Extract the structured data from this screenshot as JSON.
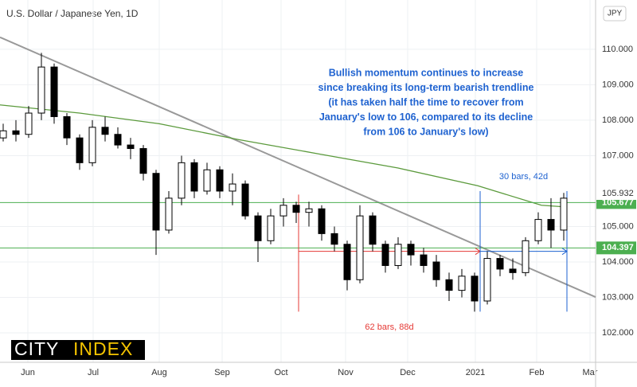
{
  "chart_data": {
    "type": "candlestick",
    "title": "U.S. Dollar / Japanese Yen, 1D",
    "currency": "JPY",
    "logo": [
      "CITY",
      "INDEX"
    ],
    "annotation": [
      "Bullish momentum continues to increase",
      "since breaking its long-term bearish trendline",
      "(it has taken half the time to recover from",
      "January's low to 106, compared to its decline",
      "from 106 to January's low)"
    ],
    "up_color": "#ffffff",
    "down_color": "#000000",
    "xlim": [
      0,
      187
    ],
    "ylim": [
      101.17,
      111.39
    ],
    "xticks": [
      {
        "value": 8.75,
        "label": "Jun"
      },
      {
        "value": 29.25,
        "label": "Jul"
      },
      {
        "value": 50,
        "label": "Aug"
      },
      {
        "value": 69.75,
        "label": "Sep"
      },
      {
        "value": 88.25,
        "label": "Oct"
      },
      {
        "value": 108.5,
        "label": "Nov"
      },
      {
        "value": 128,
        "label": "Dec"
      },
      {
        "value": 149.25,
        "label": "2021"
      },
      {
        "value": 168.5,
        "label": "Feb"
      },
      {
        "value": 185.25,
        "label": "Mar"
      }
    ],
    "yticks": [
      {
        "value": 102,
        "label": "102.000"
      },
      {
        "value": 103,
        "label": "103.000"
      },
      {
        "value": 104,
        "label": "104.000"
      },
      {
        "value": 105,
        "label": "105.000"
      },
      {
        "value": 107,
        "label": "107.000"
      },
      {
        "value": 108,
        "label": "108.000"
      },
      {
        "value": 109,
        "label": "109.000"
      },
      {
        "value": 110,
        "label": "110.000"
      }
    ],
    "grid": true,
    "x": [
      1,
      5,
      9,
      13,
      17,
      21,
      25,
      29,
      33,
      37,
      41,
      45,
      49,
      53,
      57,
      61,
      65,
      69,
      73,
      77,
      81,
      85,
      89,
      93,
      97,
      101,
      105,
      109,
      113,
      117,
      121,
      125,
      129,
      133,
      137,
      141,
      145,
      149,
      153,
      157,
      161,
      165,
      169,
      173,
      177
    ],
    "open": [
      107.5,
      107.7,
      107.6,
      108.2,
      109.5,
      108.1,
      107.5,
      106.8,
      107.8,
      107.6,
      107.3,
      107.2,
      106.5,
      104.9,
      105.8,
      106.8,
      106.0,
      106.6,
      106.0,
      106.2,
      105.3,
      104.6,
      105.3,
      105.6,
      105.4,
      105.5,
      104.8,
      104.5,
      103.5,
      105.3,
      104.5,
      103.9,
      104.5,
      104.2,
      104.0,
      103.5,
      103.2,
      103.6,
      102.9,
      104.1,
      103.8,
      103.7,
      104.6,
      105.2,
      104.9
    ],
    "high": [
      107.9,
      108.0,
      108.4,
      109.9,
      109.6,
      108.2,
      107.6,
      108.0,
      108.1,
      107.8,
      107.5,
      107.3,
      106.6,
      106.0,
      107.0,
      106.9,
      106.8,
      106.7,
      106.5,
      106.3,
      105.4,
      105.5,
      105.8,
      105.7,
      105.7,
      105.6,
      105.0,
      104.6,
      105.6,
      105.4,
      104.6,
      104.7,
      104.6,
      104.4,
      104.2,
      103.7,
      103.8,
      103.7,
      104.3,
      104.2,
      104.1,
      104.7,
      105.4,
      105.8,
      105.95
    ],
    "low": [
      107.4,
      107.4,
      107.5,
      108.0,
      107.9,
      107.3,
      106.6,
      106.7,
      107.4,
      107.2,
      106.9,
      106.3,
      104.2,
      104.8,
      105.6,
      105.8,
      105.9,
      105.8,
      105.6,
      105.2,
      104.0,
      104.5,
      105.0,
      105.1,
      105.0,
      104.6,
      104.3,
      103.2,
      103.4,
      104.3,
      103.7,
      103.8,
      103.9,
      103.7,
      103.3,
      102.9,
      103.0,
      102.6,
      102.8,
      103.6,
      103.5,
      103.6,
      104.5,
      104.4,
      104.6
    ],
    "close": [
      107.7,
      107.6,
      108.2,
      109.5,
      108.1,
      107.5,
      106.8,
      107.8,
      107.6,
      107.3,
      107.2,
      106.5,
      104.9,
      105.8,
      106.8,
      106.0,
      106.6,
      106.0,
      106.2,
      105.3,
      104.6,
      105.3,
      105.6,
      105.4,
      105.5,
      104.8,
      104.5,
      103.5,
      105.3,
      104.5,
      103.9,
      104.5,
      104.2,
      103.9,
      103.5,
      103.2,
      103.6,
      102.9,
      104.1,
      103.8,
      103.7,
      104.6,
      105.2,
      104.9,
      105.8
    ],
    "lines": [
      {
        "color": "#999999",
        "x": [
          0,
          187
        ],
        "values": [
          110.34,
          103.01
        ]
      },
      {
        "color": "#5b9a3c",
        "x": [
          0,
          25,
          50,
          75,
          100,
          125,
          150,
          170,
          178
        ],
        "values": [
          108.43,
          108.2,
          107.9,
          107.45,
          107.05,
          106.65,
          106.15,
          105.6,
          105.55
        ]
      }
    ],
    "levels": [
      {
        "value": 105.677,
        "label": "105.677",
        "color": "#4caf50"
      },
      {
        "value": 104.397,
        "label": "104.397",
        "color": "#4caf50"
      }
    ],
    "last_price": {
      "value": 105.932,
      "label": "105.932"
    },
    "measures": [
      {
        "label": "62 bars, 88d",
        "color": "#e53935",
        "x": [
          93.75,
          150.75
        ],
        "span": [
          102.6,
          105.9
        ],
        "y": 104.3
      },
      {
        "label": "30 bars, 42d",
        "color": "#1e62d0",
        "x": [
          150.75,
          178
        ],
        "span": [
          102.6,
          106.0
        ],
        "y": 104.3
      }
    ]
  }
}
